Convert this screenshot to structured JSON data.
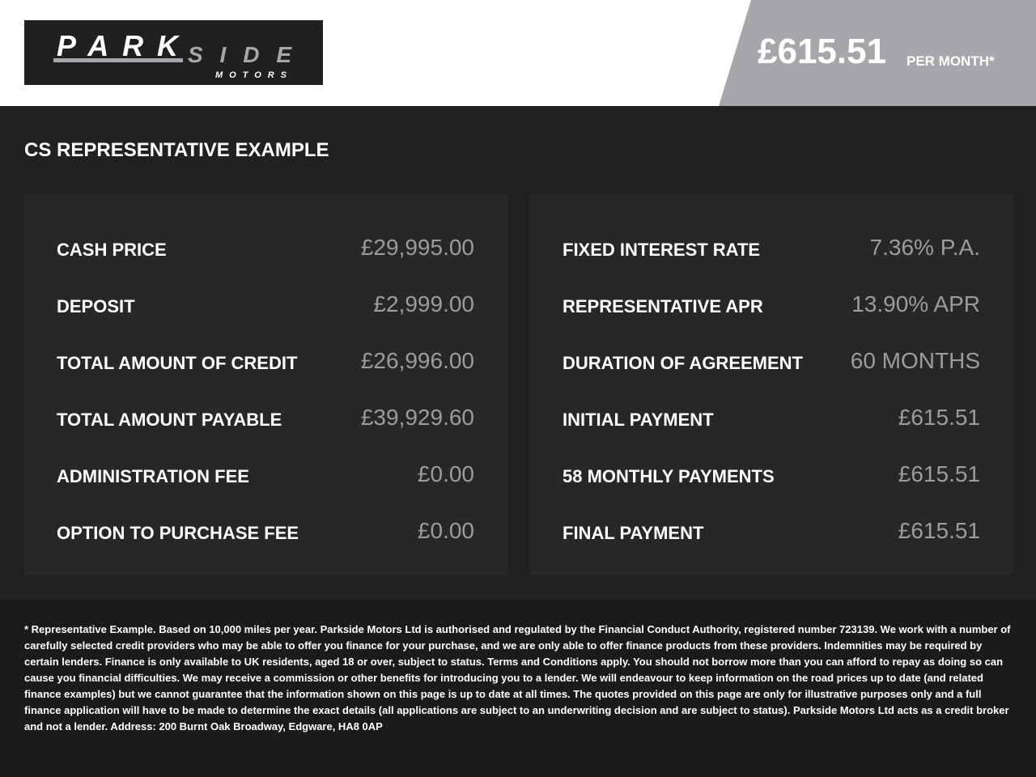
{
  "header": {
    "logo_text": "PARKSIDE MOTORS",
    "price": "£615.51",
    "price_suffix": "PER MONTH*",
    "banner_color": "#a5a7aa"
  },
  "main": {
    "title": "CS REPRESENTATIVE EXAMPLE",
    "left": [
      {
        "label": "CASH PRICE",
        "value": "£29,995.00"
      },
      {
        "label": "DEPOSIT",
        "value": "£2,999.00"
      },
      {
        "label": "TOTAL AMOUNT OF CREDIT",
        "value": "£26,996.00"
      },
      {
        "label": "TOTAL AMOUNT PAYABLE",
        "value": "£39,929.60"
      },
      {
        "label": "ADMINISTRATION FEE",
        "value": "£0.00"
      },
      {
        "label": "OPTION TO PURCHASE FEE",
        "value": "£0.00"
      }
    ],
    "right": [
      {
        "label": "FIXED INTEREST RATE",
        "value": "7.36% P.A."
      },
      {
        "label": "REPRESENTATIVE APR",
        "value": "13.90% APR"
      },
      {
        "label": "DURATION OF AGREEMENT",
        "value": "60 MONTHS"
      },
      {
        "label": "INITIAL PAYMENT",
        "value": "£615.51"
      },
      {
        "label": "58 MONTHLY PAYMENTS",
        "value": "£615.51"
      },
      {
        "label": "FINAL PAYMENT",
        "value": "£615.51"
      }
    ]
  },
  "footer": {
    "lines": [
      "* Representative Example. Based on 10,000 miles per year. Parkside Motors Ltd is authorised and regulated by the Financial Conduct Authority, registered number 723139. We work with a number of carefully",
      "selected credit providers who may be able to offer you finance for your purchase, and we are only able to offer finance products from these providers. Indemnities may be required by certain lenders. Finance is",
      "only available to UK residents, aged 18 or over, subject to status. Terms and Conditions apply. You should not borrow more than you can afford to repay as doing so can cause you financial difficulties. We may",
      "receive a commission or other benefits for introducing you to a lender. We will endeavour to keep information on the road prices up to date (and related finance examples) but we cannot guarantee that the",
      "information shown on this page is up to date at all times. The quotes provided on this page are only for illustrative purposes only and a full finance application will have to be made to determine the exact",
      "details (all applications are subject to an underwriting decision and are subject to status). Parkside Motors Ltd acts as a credit broker and not a lender. Address:  200 Burnt Oak Broadway, Edgware, HA8 0AP"
    ]
  }
}
